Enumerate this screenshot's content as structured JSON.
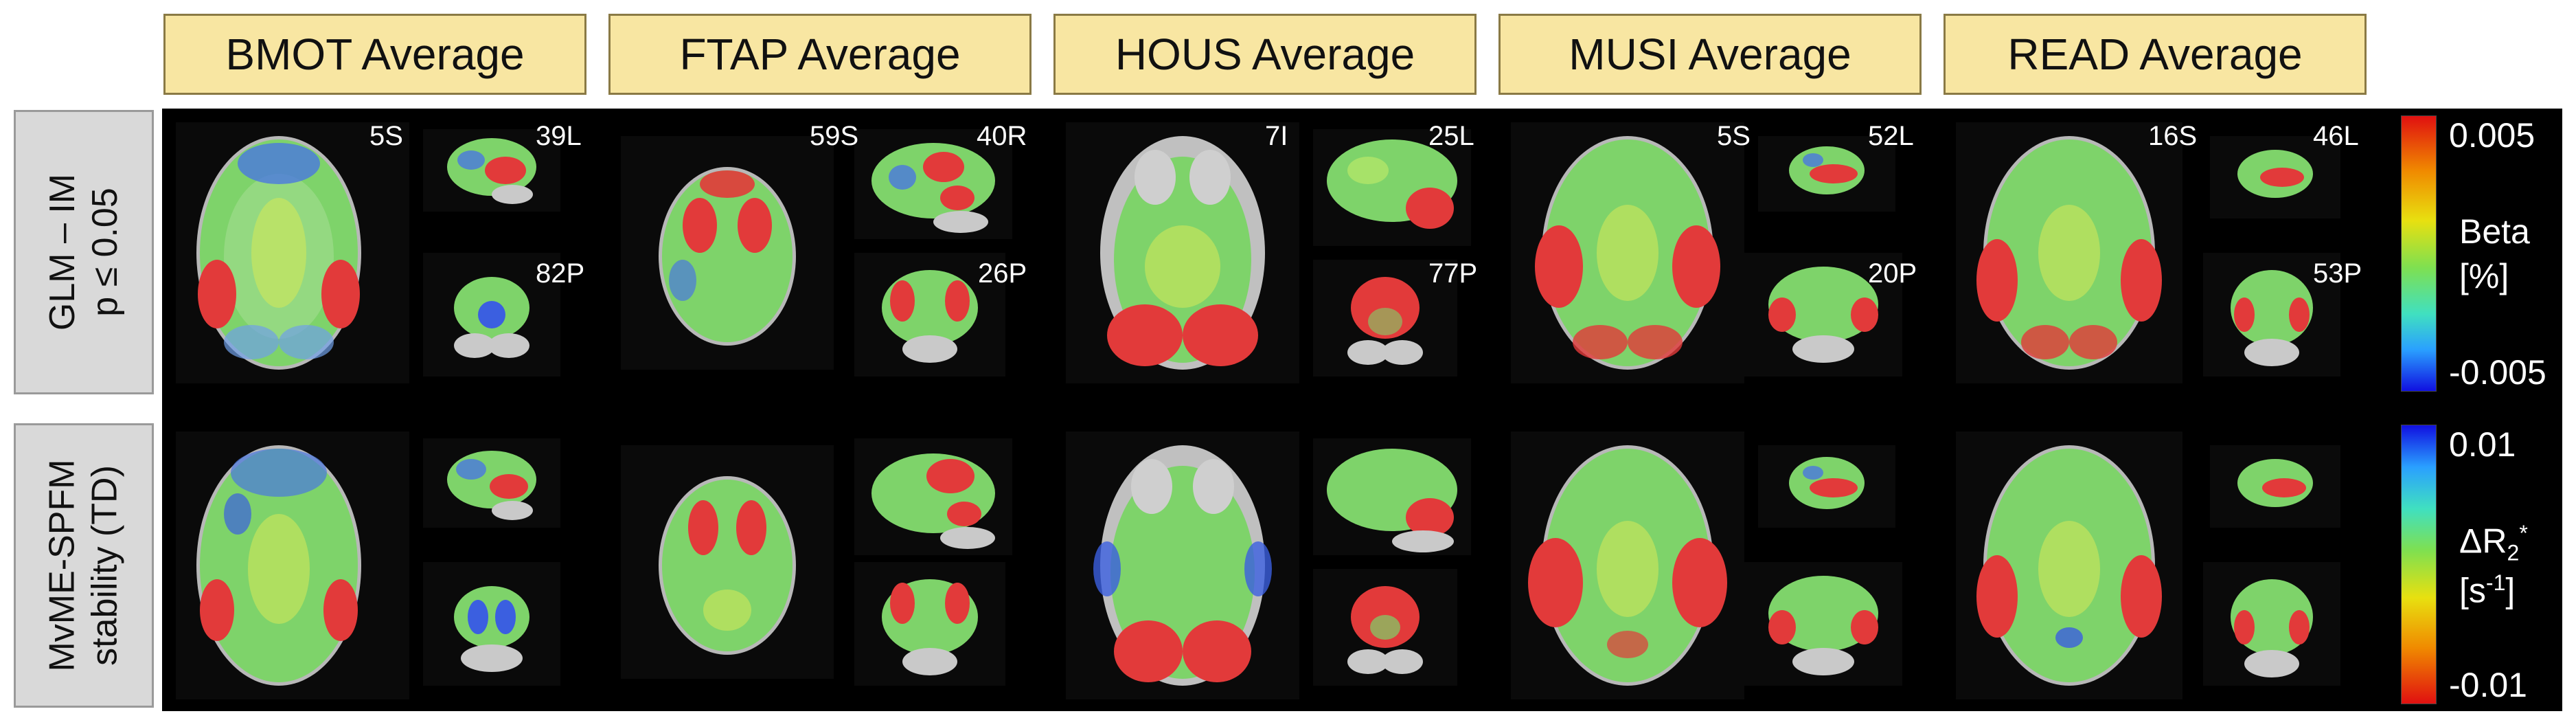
{
  "columns": [
    {
      "label": "BMOT Average"
    },
    {
      "label": "FTAP Average"
    },
    {
      "label": "HOUS Average"
    },
    {
      "label": "MUSI Average"
    },
    {
      "label": "READ Average"
    }
  ],
  "rows": [
    {
      "label_line1": "GLM – IM",
      "label_line2": "p ≤ 0.05"
    },
    {
      "label_line1": "MvME-SPFM",
      "label_line2": "stability (TD)"
    }
  ],
  "slice_labels": {
    "bmot": {
      "axial": "5S",
      "sagittal": "39L",
      "coronal": "82P"
    },
    "ftap": {
      "axial": "59S",
      "sagittal": "40R",
      "coronal": "26P"
    },
    "hous": {
      "axial": "7I",
      "sagittal": "25L",
      "coronal": "77P"
    },
    "musi": {
      "axial": "5S",
      "sagittal": "52L",
      "coronal": "20P"
    },
    "read": {
      "axial": "16S",
      "sagittal": "46L",
      "coronal": "53P"
    }
  },
  "colorbar_top": {
    "max": "0.005",
    "label_line1": "Beta",
    "label_line2": "[%]",
    "min": "-0.005"
  },
  "colorbar_bottom": {
    "max": "0.01",
    "label_line1": "ΔR",
    "label_sub": "2",
    "label_sup": "*",
    "unit_base": "[s",
    "unit_sup": "-1",
    "unit_close": "]",
    "min": "-0.01"
  },
  "colors": {
    "header_bg": "#f8e6a2",
    "header_border": "#8a7a45",
    "row_label_bg": "#d9d9d9",
    "panel_bg": "#000000"
  }
}
